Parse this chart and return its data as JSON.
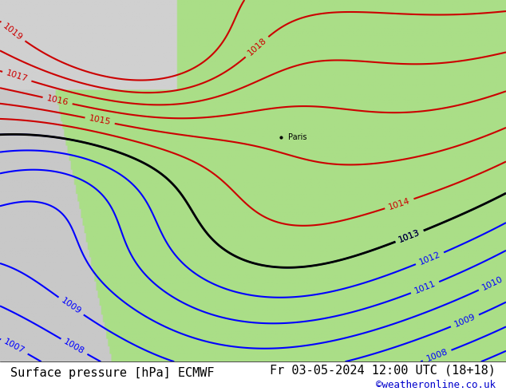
{
  "title_left": "Surface pressure [hPa] ECMWF",
  "title_right": "Fr 03-05-2024 12:00 UTC (18+18)",
  "credit": "©weatheronline.co.uk",
  "title_fontsize": 11,
  "credit_color": "#0000cc",
  "bg_land_color": "#aade87",
  "bg_sea_color": "#d0d0d0",
  "bg_ocean_color": "#c8c8c8",
  "contour_blue_color": "#0000ff",
  "contour_red_color": "#cc0000",
  "contour_black_color": "#000000",
  "label_fontsize": 8,
  "bottom_bar_color": "#ffffff",
  "bottom_text_color": "#000000"
}
